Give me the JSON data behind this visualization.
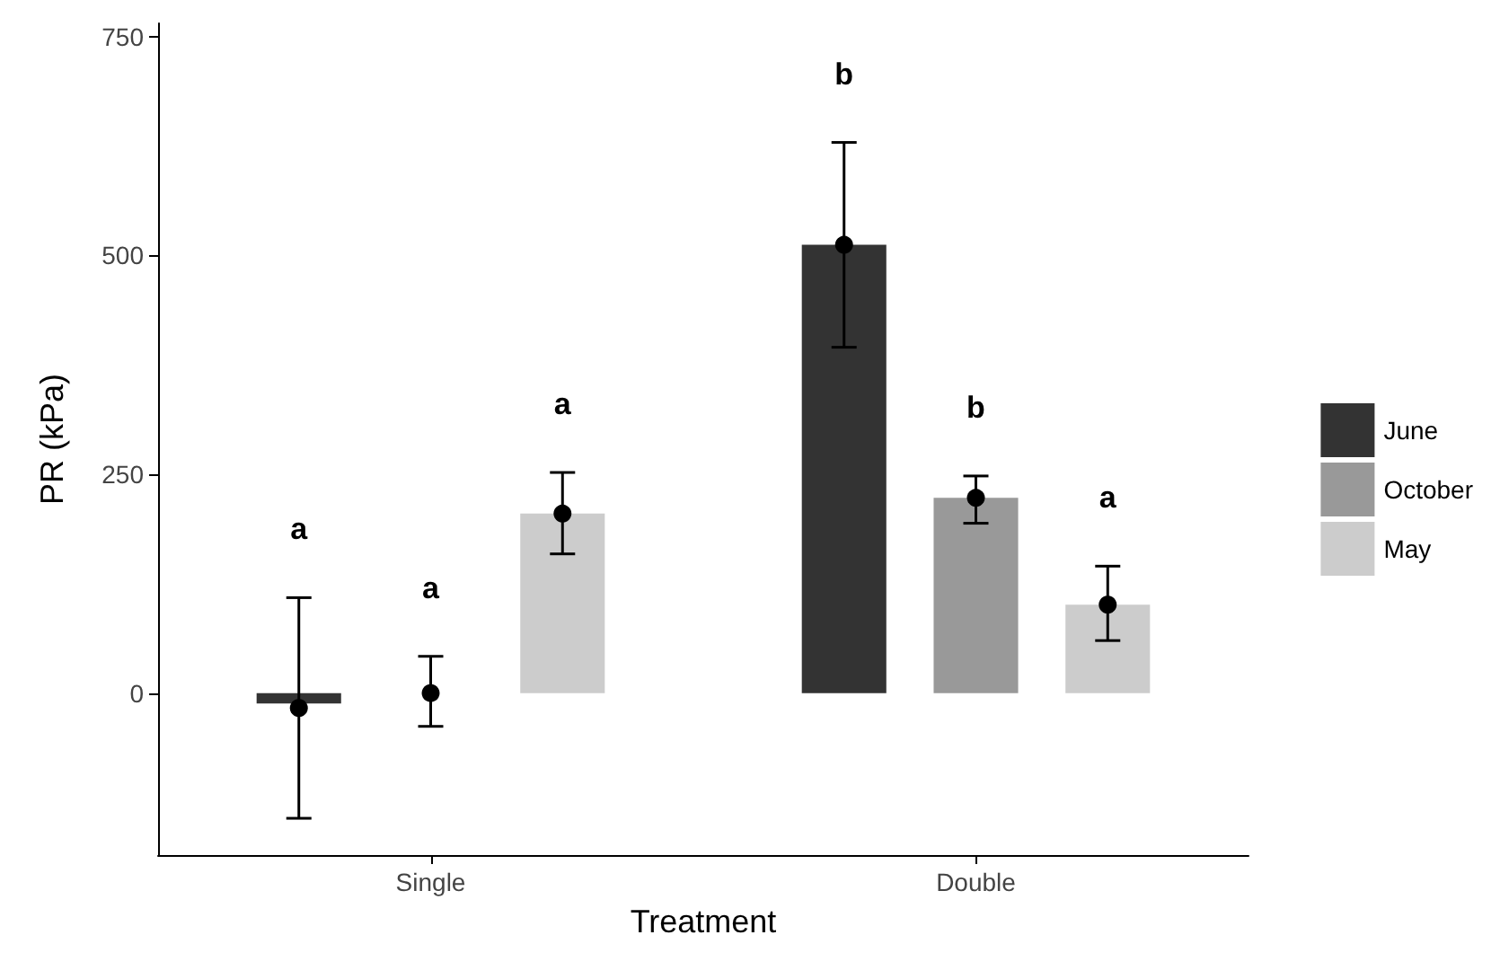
{
  "chart_data": {
    "type": "bar",
    "xlabel": "Treatment",
    "ylabel": "PR (kPa)",
    "categories": [
      "Single",
      "Double"
    ],
    "series": [
      {
        "name": "June",
        "color": "#333333",
        "values": [
          -12,
          512
        ]
      },
      {
        "name": "October",
        "color": "#999999",
        "values": [
          0,
          223
        ]
      },
      {
        "name": "May",
        "color": "#cccccc",
        "values": [
          205,
          101
        ]
      },
      {
        "type": "scatter",
        "color": "#000000",
        "x": [
          "Single",
          "Double"
        ],
        "values": [
          -17,
          512
        ],
        "errors": [
          [
            -143,
            109
          ],
          [
            395,
            629
          ]
        ]
      },
      {
        "type": "scatter",
        "color": "#000000",
        "x": [
          "Single",
          "Double"
        ],
        "values": [
          0,
          223
        ],
        "errors": [
          [
            -38,
            42
          ],
          [
            194,
            248
          ]
        ]
      },
      {
        "type": "scatter",
        "color": "#000000",
        "x": [
          "Single",
          "Double"
        ],
        "values": [
          205,
          101
        ],
        "errors": [
          [
            159,
            252
          ],
          [
            60,
            145
          ]
        ]
      }
    ],
    "ylim": [
      -185,
      765
    ],
    "yticks": [
      0,
      250,
      500,
      750
    ],
    "legend": "right",
    "marker": "circle",
    "annotations": [
      "a",
      "a",
      "a",
      "b",
      "b",
      "a"
    ]
  }
}
